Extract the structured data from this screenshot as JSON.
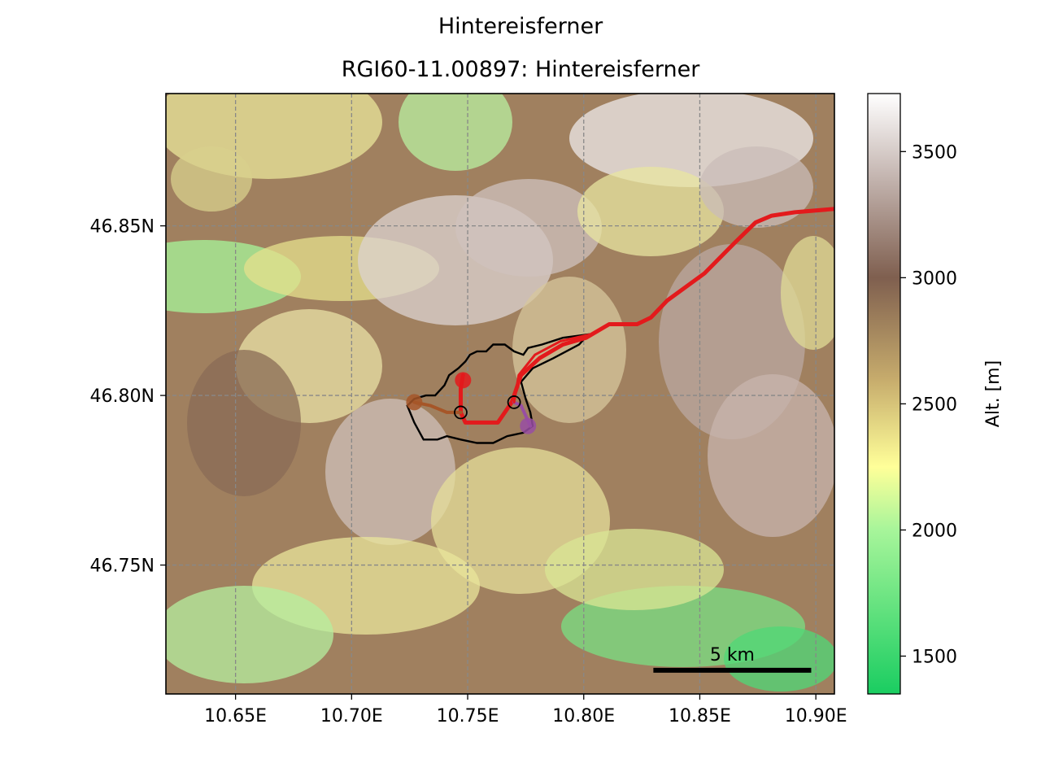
{
  "title": "Hintereisferner",
  "subtitle": "RGI60-11.00897: Hintereisferner",
  "map": {
    "extent": {
      "lon": [
        10.62,
        10.908
      ],
      "lat": [
        46.712,
        46.889
      ]
    },
    "x_ticks": [
      {
        "value": 10.65,
        "label": "10.65E"
      },
      {
        "value": 10.7,
        "label": "10.70E"
      },
      {
        "value": 10.75,
        "label": "10.75E"
      },
      {
        "value": 10.8,
        "label": "10.80E"
      },
      {
        "value": 10.85,
        "label": "10.85E"
      },
      {
        "value": 10.9,
        "label": "10.90E"
      }
    ],
    "y_ticks": [
      {
        "value": 46.85,
        "label": "46.85N"
      },
      {
        "value": 46.8,
        "label": "46.80N"
      },
      {
        "value": 46.75,
        "label": "46.75N"
      }
    ],
    "grid": true,
    "scalebar": {
      "label": "5 km",
      "lon": [
        10.83,
        10.898
      ],
      "lat": 46.719
    },
    "glacier_outline_color": "#000000",
    "flowlines": [
      {
        "color": "#e31a1c",
        "width": 5,
        "points": [
          [
            10.748,
            46.806
          ],
          [
            10.747,
            46.802
          ],
          [
            10.747,
            46.795
          ],
          [
            10.749,
            46.792
          ],
          [
            10.763,
            46.792
          ],
          [
            10.769,
            46.798
          ],
          [
            10.773,
            46.806
          ],
          [
            10.781,
            46.811
          ],
          [
            10.791,
            46.815
          ],
          [
            10.801,
            46.817
          ],
          [
            10.811,
            46.821
          ],
          [
            10.823,
            46.821
          ],
          [
            10.829,
            46.823
          ],
          [
            10.836,
            46.828
          ],
          [
            10.852,
            46.836
          ],
          [
            10.865,
            46.845
          ],
          [
            10.874,
            46.851
          ],
          [
            10.881,
            46.853
          ],
          [
            10.891,
            46.854
          ],
          [
            10.908,
            46.855
          ]
        ]
      },
      {
        "color": "#a65628",
        "width": 4,
        "points": [
          [
            10.727,
            46.798
          ],
          [
            10.734,
            46.797
          ],
          [
            10.741,
            46.795
          ],
          [
            10.747,
            46.795
          ]
        ]
      },
      {
        "color": "#984ea3",
        "width": 4,
        "points": [
          [
            10.777,
            46.791
          ],
          [
            10.775,
            46.794
          ],
          [
            10.773,
            46.797
          ],
          [
            10.77,
            46.798
          ]
        ]
      },
      {
        "color": "#e31a1c",
        "width": 3,
        "points": [
          [
            10.77,
            46.798
          ],
          [
            10.772,
            46.806
          ],
          [
            10.779,
            46.812
          ],
          [
            10.79,
            46.816
          ],
          [
            10.803,
            46.818
          ]
        ]
      }
    ],
    "heads": [
      {
        "color": "#a65628",
        "lon": 10.727,
        "lat": 46.798
      },
      {
        "color": "#e31a1c",
        "lon": 10.748,
        "lat": 46.8045
      },
      {
        "color": "#984ea3",
        "lon": 10.776,
        "lat": 46.791
      }
    ],
    "junctions": [
      {
        "lon": 10.747,
        "lat": 46.795
      },
      {
        "lon": 10.77,
        "lat": 46.798
      }
    ],
    "glacier_outline": [
      [
        10.736,
        46.8
      ],
      [
        10.74,
        46.803
      ],
      [
        10.742,
        46.806
      ],
      [
        10.746,
        46.808
      ],
      [
        10.749,
        46.81
      ],
      [
        10.751,
        46.812
      ],
      [
        10.754,
        46.813
      ],
      [
        10.758,
        46.813
      ],
      [
        10.761,
        46.815
      ],
      [
        10.766,
        46.815
      ],
      [
        10.77,
        46.813
      ],
      [
        10.774,
        46.812
      ],
      [
        10.776,
        46.814
      ],
      [
        10.782,
        46.815
      ],
      [
        10.791,
        46.817
      ],
      [
        10.802,
        46.818
      ],
      [
        10.798,
        46.815
      ],
      [
        10.787,
        46.811
      ],
      [
        10.778,
        46.808
      ],
      [
        10.773,
        46.804
      ],
      [
        10.775,
        46.799
      ],
      [
        10.777,
        46.795
      ],
      [
        10.778,
        46.791
      ],
      [
        10.774,
        46.789
      ],
      [
        10.767,
        46.788
      ],
      [
        10.761,
        46.786
      ],
      [
        10.754,
        46.786
      ],
      [
        10.747,
        46.787
      ],
      [
        10.741,
        46.788
      ],
      [
        10.737,
        46.787
      ],
      [
        10.731,
        46.787
      ],
      [
        10.727,
        46.792
      ],
      [
        10.724,
        46.797
      ],
      [
        10.727,
        46.799
      ],
      [
        10.732,
        46.8
      ],
      [
        10.736,
        46.8
      ]
    ]
  },
  "colorbar": {
    "label": "Alt. [m]",
    "range": [
      1350,
      3730
    ],
    "ticks": [
      1500,
      2000,
      2500,
      3000,
      3500
    ],
    "stops": [
      {
        "v": 1350,
        "c": "#1acd61"
      },
      {
        "v": 2000,
        "c": "#a7f59a"
      },
      {
        "v": 2250,
        "c": "#ffff99"
      },
      {
        "v": 2600,
        "c": "#c6ab6c"
      },
      {
        "v": 3000,
        "c": "#7f5f4f"
      },
      {
        "v": 3400,
        "c": "#c4b5b0"
      },
      {
        "v": 3730,
        "c": "#ffffff"
      }
    ]
  }
}
